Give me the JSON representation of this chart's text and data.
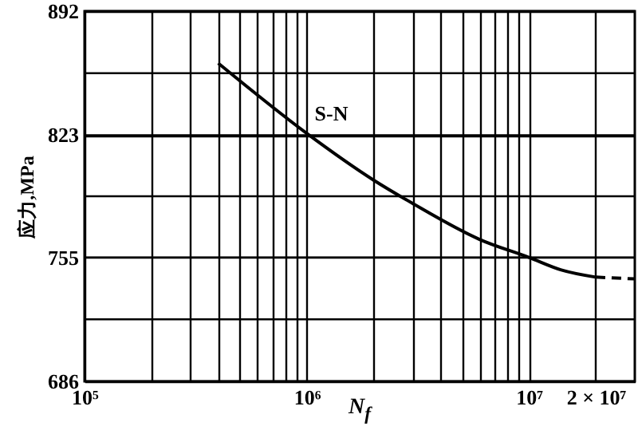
{
  "chart_data": {
    "type": "line",
    "xlabel": "N$_{f}$",
    "ylabel": "应力,MPa",
    "log": "x",
    "grid": true,
    "legend": false,
    "marker": "none",
    "xlim": [
      100000,
      30000000
    ],
    "ylim": [
      686,
      892
    ],
    "xticks": [
      {
        "value": 100000,
        "label": "10⁵"
      },
      {
        "value": 200000,
        "label": null
      },
      {
        "value": 300000,
        "label": null
      },
      {
        "value": 400000,
        "label": null
      },
      {
        "value": 500000,
        "label": null
      },
      {
        "value": 600000,
        "label": null
      },
      {
        "value": 700000,
        "label": null
      },
      {
        "value": 800000,
        "label": null
      },
      {
        "value": 900000,
        "label": null
      },
      {
        "value": 1000000,
        "label": "10⁶"
      },
      {
        "value": 2000000,
        "label": null
      },
      {
        "value": 3000000,
        "label": null
      },
      {
        "value": 4000000,
        "label": null
      },
      {
        "value": 5000000,
        "label": null
      },
      {
        "value": 6000000,
        "label": null
      },
      {
        "value": 7000000,
        "label": null
      },
      {
        "value": 8000000,
        "label": null
      },
      {
        "value": 9000000,
        "label": null
      },
      {
        "value": 10000000,
        "label": "10⁷"
      },
      {
        "value": 20000000,
        "label": "2 × 10⁷"
      }
    ],
    "yticks": [
      686,
      {
        "value": 720.5,
        "label": null
      },
      755,
      {
        "value": 789,
        "label": null
      },
      823,
      {
        "value": 857.5,
        "label": null
      },
      892
    ],
    "series": [
      {
        "name": "S-N",
        "color": "#000000",
        "line_style": "solid",
        "x": [
          400000,
          1000000,
          2000000,
          3000000,
          6000000,
          10000000,
          14000000,
          20000000
        ],
        "values": [
          863,
          824,
          798,
          785,
          765,
          755,
          748,
          744
        ]
      },
      {
        "color": "#000000",
        "line_style": "dashed",
        "x": [
          20000000,
          30000000
        ],
        "values": [
          744,
          743
        ]
      }
    ]
  }
}
